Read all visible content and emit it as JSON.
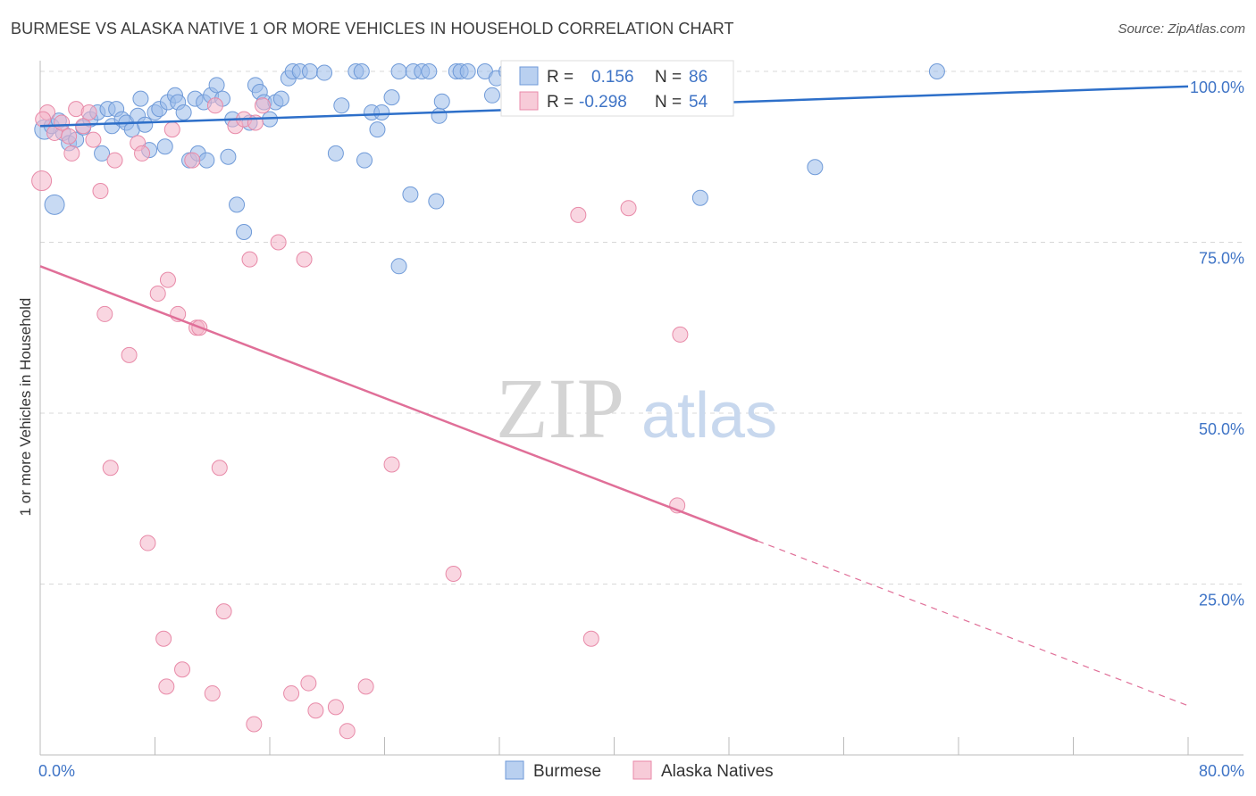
{
  "title": "BURMESE VS ALASKA NATIVE 1 OR MORE VEHICLES IN HOUSEHOLD CORRELATION CHART",
  "source": "Source: ZipAtlas.com",
  "watermark": {
    "zip": "ZIP",
    "atlas": "atlas"
  },
  "colors": {
    "burmese": "#9bbcea",
    "burmese_stroke": "#6f9ad8",
    "burmese_line": "#2d6fc9",
    "alaska": "#f4b5c8",
    "alaska_stroke": "#e88aa8",
    "alaska_line": "#e06f98",
    "axis_text": "#3f74c6",
    "grid": "#d8d8d8"
  },
  "legend": {
    "burmese": {
      "r_label": "R =",
      "r_value": "0.156",
      "n_label": "N =",
      "n_value": "86"
    },
    "alaska": {
      "r_label": "R =",
      "r_value": "-0.298",
      "n_label": "N =",
      "n_value": "54"
    }
  },
  "bottom_legend": [
    "Burmese",
    "Alaska Natives"
  ],
  "chart_data": {
    "type": "scatter",
    "xlabel": "",
    "ylabel": "1 or more Vehicles in Household",
    "xlim": [
      0,
      80
    ],
    "ylim": [
      0,
      100
    ],
    "x_tick_labels": [
      "0.0%",
      "80.0%"
    ],
    "y_tick_labels": [
      {
        "value": 100,
        "label": "100.0%"
      },
      {
        "value": 75,
        "label": "75.0%"
      },
      {
        "value": 50,
        "label": "50.0%"
      },
      {
        "value": 25,
        "label": "25.0%"
      }
    ],
    "grid": true,
    "series": [
      {
        "name": "Burmese",
        "r": 0.156,
        "n": 86,
        "trend": {
          "x": [
            0,
            80
          ],
          "y": [
            92.0,
            97.8
          ],
          "dashed_from": null
        },
        "points": [
          [
            0.3,
            91.5
          ],
          [
            0.8,
            92.0
          ],
          [
            1.3,
            92.8
          ],
          [
            1.0,
            80.5
          ],
          [
            1.6,
            91.0
          ],
          [
            2.0,
            89.5
          ],
          [
            2.5,
            90.0
          ],
          [
            3.0,
            91.8
          ],
          [
            3.5,
            93.0
          ],
          [
            4.0,
            94.0
          ],
          [
            4.3,
            88.0
          ],
          [
            4.7,
            94.5
          ],
          [
            5.0,
            92.0
          ],
          [
            5.3,
            94.5
          ],
          [
            5.7,
            93.0
          ],
          [
            6.0,
            92.5
          ],
          [
            6.4,
            91.5
          ],
          [
            6.8,
            93.5
          ],
          [
            7.0,
            96.0
          ],
          [
            7.3,
            92.2
          ],
          [
            7.6,
            88.5
          ],
          [
            8.0,
            94.0
          ],
          [
            8.3,
            94.5
          ],
          [
            8.7,
            89.0
          ],
          [
            8.9,
            95.5
          ],
          [
            9.4,
            96.5
          ],
          [
            9.6,
            95.5
          ],
          [
            10.0,
            94.0
          ],
          [
            10.4,
            87.0
          ],
          [
            10.8,
            96.0
          ],
          [
            11.0,
            88.0
          ],
          [
            11.4,
            95.5
          ],
          [
            11.6,
            87.0
          ],
          [
            11.9,
            96.5
          ],
          [
            12.3,
            98.0
          ],
          [
            12.7,
            96.0
          ],
          [
            13.1,
            87.5
          ],
          [
            13.4,
            93.0
          ],
          [
            13.7,
            80.5
          ],
          [
            14.2,
            76.5
          ],
          [
            14.6,
            92.5
          ],
          [
            15.0,
            98.0
          ],
          [
            15.3,
            97.0
          ],
          [
            15.6,
            95.5
          ],
          [
            16.0,
            93.0
          ],
          [
            16.4,
            95.5
          ],
          [
            16.8,
            96.0
          ],
          [
            17.3,
            99.0
          ],
          [
            17.6,
            100.0
          ],
          [
            18.1,
            100.0
          ],
          [
            18.8,
            100.0
          ],
          [
            19.8,
            99.8
          ],
          [
            20.6,
            88.0
          ],
          [
            21.0,
            95.0
          ],
          [
            22.0,
            100.0
          ],
          [
            22.4,
            100.0
          ],
          [
            22.6,
            87.0
          ],
          [
            23.1,
            94.0
          ],
          [
            23.5,
            91.5
          ],
          [
            23.8,
            94.0
          ],
          [
            24.5,
            96.2
          ],
          [
            25.0,
            100.0
          ],
          [
            25.8,
            82.0
          ],
          [
            26.0,
            100.0
          ],
          [
            26.6,
            100.0
          ],
          [
            27.1,
            100.0
          ],
          [
            27.6,
            81.0
          ],
          [
            27.8,
            93.5
          ],
          [
            28.0,
            95.6
          ],
          [
            29.0,
            100.0
          ],
          [
            29.3,
            100.0
          ],
          [
            29.8,
            100.0
          ],
          [
            31.0,
            100.0
          ],
          [
            31.5,
            96.5
          ],
          [
            31.8,
            99.0
          ],
          [
            32.5,
            100.0
          ],
          [
            35.0,
            100.0
          ],
          [
            36.0,
            100.0
          ],
          [
            37.0,
            100.0
          ],
          [
            38.0,
            100.0
          ],
          [
            42.3,
            100.0
          ],
          [
            43.0,
            100.0
          ],
          [
            46.0,
            81.5
          ],
          [
            54.0,
            86.0
          ],
          [
            62.5,
            100.0
          ],
          [
            25.0,
            71.5
          ]
        ]
      },
      {
        "name": "Alaska Natives",
        "r": -0.298,
        "n": 54,
        "trend": {
          "x": [
            0,
            80
          ],
          "y": [
            71.5,
            7.2
          ],
          "dashed_from": 50
        },
        "points": [
          [
            0.1,
            84.0
          ],
          [
            0.5,
            94.0
          ],
          [
            1.0,
            91.0
          ],
          [
            1.5,
            92.5
          ],
          [
            2.0,
            90.5
          ],
          [
            2.5,
            94.5
          ],
          [
            3.0,
            92.0
          ],
          [
            3.4,
            94.0
          ],
          [
            3.7,
            90.0
          ],
          [
            4.2,
            82.5
          ],
          [
            5.2,
            87.0
          ],
          [
            4.5,
            64.5
          ],
          [
            4.9,
            42.0
          ],
          [
            6.2,
            58.5
          ],
          [
            6.8,
            89.5
          ],
          [
            7.1,
            88.0
          ],
          [
            7.5,
            31.0
          ],
          [
            8.2,
            67.5
          ],
          [
            8.6,
            17.0
          ],
          [
            8.8,
            10.0
          ],
          [
            8.9,
            69.5
          ],
          [
            9.2,
            91.5
          ],
          [
            9.6,
            64.5
          ],
          [
            9.9,
            12.5
          ],
          [
            10.6,
            87.0
          ],
          [
            10.9,
            62.5
          ],
          [
            11.1,
            62.5
          ],
          [
            12.0,
            9.0
          ],
          [
            12.5,
            42.0
          ],
          [
            12.8,
            21.0
          ],
          [
            13.6,
            92.0
          ],
          [
            14.2,
            93.0
          ],
          [
            14.6,
            72.5
          ],
          [
            14.9,
            4.5
          ],
          [
            15.5,
            95.0
          ],
          [
            16.6,
            75.0
          ],
          [
            17.5,
            9.0
          ],
          [
            18.4,
            72.5
          ],
          [
            18.7,
            10.5
          ],
          [
            19.2,
            6.5
          ],
          [
            20.6,
            7.0
          ],
          [
            21.4,
            3.5
          ],
          [
            22.7,
            10.0
          ],
          [
            24.5,
            42.5
          ],
          [
            28.8,
            26.5
          ],
          [
            37.5,
            79.0
          ],
          [
            38.4,
            17.0
          ],
          [
            41.0,
            80.0
          ],
          [
            44.4,
            36.5
          ],
          [
            44.6,
            61.5
          ],
          [
            0.2,
            93.0
          ],
          [
            2.2,
            88.0
          ],
          [
            15.0,
            92.5
          ],
          [
            12.2,
            95.0
          ]
        ]
      }
    ]
  }
}
